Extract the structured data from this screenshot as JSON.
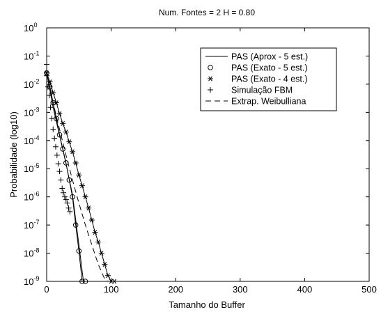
{
  "chart_data": {
    "type": "line",
    "title": "Num. Fontes = 2  H = 0.80",
    "xlabel": "Tamanho do Buffer",
    "ylabel": "Probabilidade (log10)",
    "xlim": [
      0,
      500
    ],
    "ylim_log10": [
      -9,
      0
    ],
    "y_scale": "log",
    "x_ticks": [
      "0",
      "100",
      "200",
      "300",
      "400",
      "500"
    ],
    "y_ticks": [
      {
        "base": "10",
        "exp": "0"
      },
      {
        "base": "10",
        "exp": "-1"
      },
      {
        "base": "10",
        "exp": "-2"
      },
      {
        "base": "10",
        "exp": "-3"
      },
      {
        "base": "10",
        "exp": "-4"
      },
      {
        "base": "10",
        "exp": "-5"
      },
      {
        "base": "10",
        "exp": "-6"
      },
      {
        "base": "10",
        "exp": "-7"
      },
      {
        "base": "10",
        "exp": "-8"
      },
      {
        "base": "10",
        "exp": "-9"
      }
    ],
    "grid": false,
    "legend_position": "top-right",
    "series": [
      {
        "name": "PAS (Aprox - 5 est.)",
        "style": "solid",
        "marker": "none",
        "x": [
          0,
          10,
          20,
          30,
          40,
          50,
          57
        ],
        "y": [
          0.025,
          0.0015,
          0.00015,
          1.5e-05,
          1.2e-06,
          2e-08,
          1e-09
        ]
      },
      {
        "name": "PAS (Exato - 5 est.)",
        "style": "solid",
        "marker": "circle",
        "x": [
          0,
          5,
          10,
          15,
          20,
          25,
          30,
          35,
          40,
          45,
          50,
          55,
          60
        ],
        "y": [
          0.025,
          0.008,
          0.0022,
          0.0006,
          0.00016,
          5e-05,
          1.6e-05,
          4e-06,
          1e-06,
          1e-07,
          1.2e-08,
          1e-09,
          1e-09
        ]
      },
      {
        "name": "PAS (Exato - 4 est.)",
        "style": "solid",
        "marker": "star",
        "x": [
          0,
          5,
          10,
          15,
          20,
          25,
          30,
          35,
          40,
          45,
          50,
          55,
          60,
          65,
          70,
          75,
          80,
          85,
          90,
          95,
          100,
          105
        ],
        "y": [
          0.025,
          0.012,
          0.005,
          0.0022,
          0.0009,
          0.0004,
          0.0002,
          9e-05,
          4e-05,
          1.6e-05,
          6e-06,
          2.5e-06,
          1e-06,
          4e-07,
          1.5e-07,
          5.5e-08,
          2.5e-08,
          1e-08,
          4e-09,
          1.6e-09,
          1e-09,
          1e-09
        ]
      },
      {
        "name": "Simulação FBM",
        "style": "none",
        "marker": "plus",
        "x": [
          0,
          0,
          2,
          4,
          6,
          8,
          10,
          12,
          14,
          16,
          18,
          20,
          22,
          24,
          26,
          28,
          30,
          32,
          34,
          36
        ],
        "y": [
          0.05,
          0.02,
          0.008,
          0.004,
          0.0015,
          0.0006,
          0.00025,
          0.00012,
          6e-05,
          3e-05,
          1.5e-05,
          8e-06,
          4e-06,
          2e-06,
          1.4e-06,
          1e-06,
          8e-07,
          6e-07,
          4e-07,
          3e-07
        ]
      },
      {
        "name": "Extrap. Weibulliana",
        "style": "dashed",
        "marker": "none",
        "x": [
          0,
          10,
          20,
          30,
          40,
          50,
          60,
          70,
          80,
          90,
          95
        ],
        "y": [
          0.025,
          0.0022,
          0.00025,
          3e-05,
          4e-06,
          6e-07,
          1e-07,
          2e-08,
          4e-09,
          1.2e-09,
          1e-09
        ]
      }
    ]
  }
}
